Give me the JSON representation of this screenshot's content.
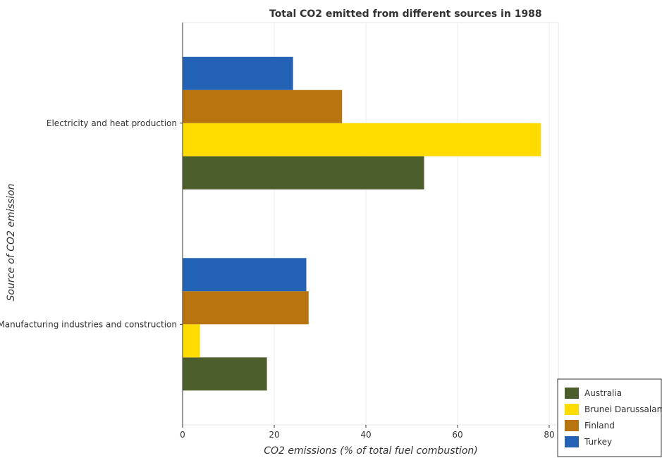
{
  "chart_data": {
    "type": "bar",
    "orientation": "horizontal",
    "title": "Total CO2 emitted from different sources in 1988",
    "xlabel": "CO2 emissions (% of total fuel combustion)",
    "ylabel": "Source of CO2 emission",
    "categories": [
      "Electricity and heat production",
      "Manufacturing industries and construction"
    ],
    "series": [
      {
        "name": "Australia",
        "color": "#4d5e2d",
        "values": [
          52.7,
          18.4
        ]
      },
      {
        "name": "Brunei Darussalam",
        "color": "#ffdc00",
        "values": [
          78.2,
          3.8
        ]
      },
      {
        "name": "Finland",
        "color": "#b8740f",
        "values": [
          34.8,
          27.5
        ]
      },
      {
        "name": "Turkey",
        "color": "#2462b6",
        "values": [
          24.1,
          27.0
        ]
      }
    ],
    "xlim": [
      0,
      82
    ],
    "xticks": [
      0,
      20,
      40,
      60,
      80
    ],
    "grid": true,
    "legend_position": "bottom-right"
  }
}
